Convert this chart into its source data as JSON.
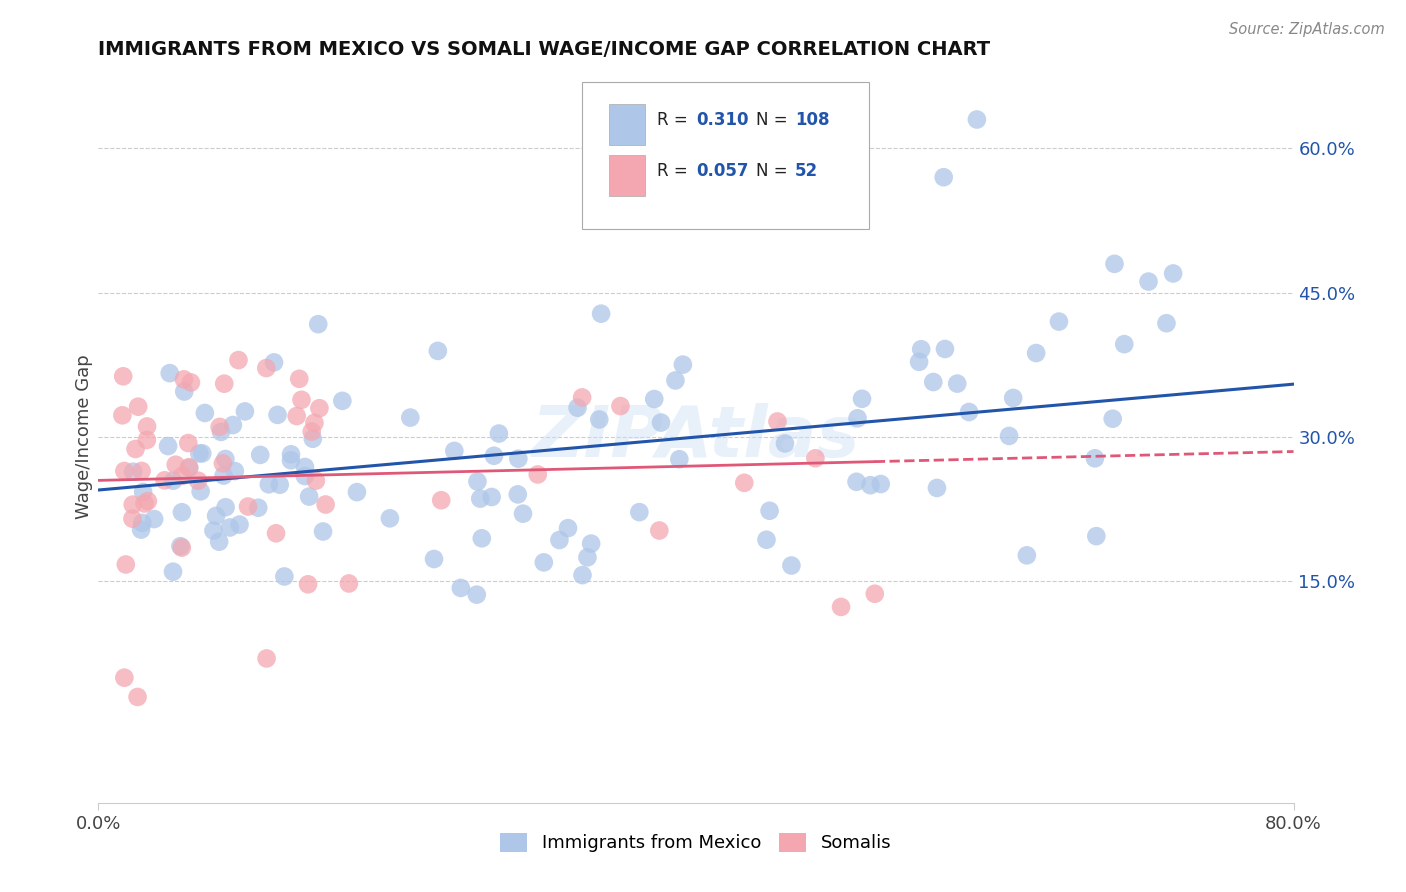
{
  "title": "IMMIGRANTS FROM MEXICO VS SOMALI WAGE/INCOME GAP CORRELATION CHART",
  "source": "Source: ZipAtlas.com",
  "ylabel": "Wage/Income Gap",
  "legend_label1": "Immigrants from Mexico",
  "legend_label2": "Somalis",
  "r1": 0.31,
  "n1": 108,
  "r2": 0.057,
  "n2": 52,
  "xlim": [
    0.0,
    0.8
  ],
  "ylim": [
    -0.08,
    0.68
  ],
  "yticks": [
    0.15,
    0.3,
    0.45,
    0.6
  ],
  "ytick_labels": [
    "15.0%",
    "30.0%",
    "45.0%",
    "60.0%"
  ],
  "xticks": [
    0.0,
    0.8
  ],
  "xtick_labels": [
    "0.0%",
    "80.0%"
  ],
  "color_mexico": "#aec6e8",
  "color_somali": "#f4a7b0",
  "line_color_mexico": "#2255aa",
  "line_color_somali": "#e05878",
  "watermark": "ZIPAtlas",
  "background_color": "#ffffff",
  "grid_color": "#cccccc",
  "mexico_line_start_y": 0.245,
  "mexico_line_end_y": 0.355,
  "somali_line_start_y": 0.255,
  "somali_line_end_y": 0.285
}
